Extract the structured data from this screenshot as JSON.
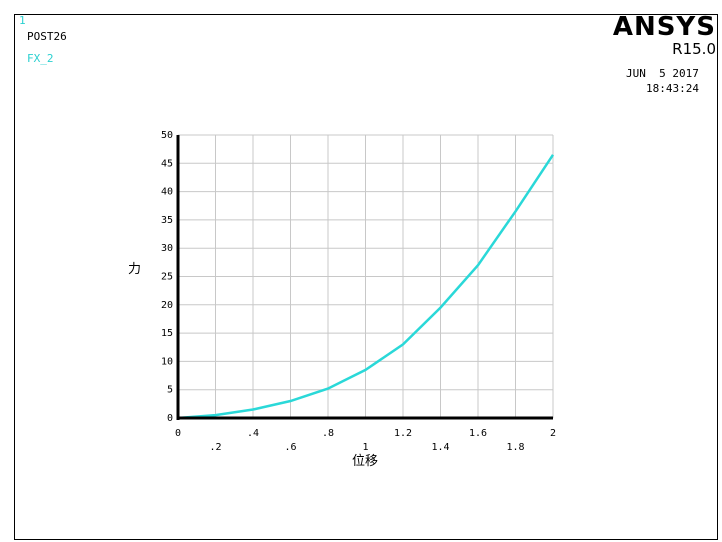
{
  "window_number": "1",
  "processor": "POST26",
  "variable_label": "FX_2",
  "brand": "ANSYS",
  "version": "R15.0",
  "date": "JUN  5 2017",
  "time": "18:43:24",
  "colors": {
    "curve": "#2ad8d8",
    "grid": "#c8c8c8",
    "axis": "#000000",
    "label_cyan": "#2ad0d0"
  },
  "chart_data": {
    "type": "line",
    "xlabel": "位移",
    "ylabel": "力",
    "xlim": [
      0,
      2
    ],
    "ylim": [
      0,
      50
    ],
    "grid": true,
    "x_ticks": [
      "0",
      ".2",
      ".4",
      ".6",
      ".8",
      "1",
      "1.2",
      "1.4",
      "1.6",
      "1.8",
      "2"
    ],
    "y_ticks": [
      "0",
      "5",
      "10",
      "15",
      "20",
      "25",
      "30",
      "35",
      "40",
      "45",
      "50"
    ],
    "series": [
      {
        "x": [
          0,
          0.2,
          0.4,
          0.6,
          0.8,
          1.0,
          1.2,
          1.4,
          1.6,
          1.8,
          2.0
        ],
        "y": [
          0,
          0.5,
          1.5,
          3.0,
          5.2,
          8.5,
          13.0,
          19.5,
          27.0,
          36.5,
          46.5
        ]
      }
    ]
  }
}
